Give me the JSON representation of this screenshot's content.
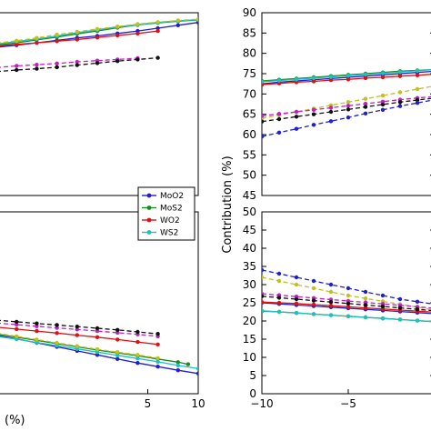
{
  "chart_data": [
    {
      "id": "left-top",
      "type": "line",
      "xlim": [
        -10,
        10
      ],
      "ylim": [
        45,
        90
      ],
      "xticks": [],
      "yticks": [],
      "series": [
        {
          "name": "MoO2",
          "color": "#1f1fd0",
          "dash": false,
          "x": [
            -10,
            -8,
            -6,
            -4,
            -2,
            0,
            2,
            4,
            6,
            8,
            10
          ],
          "y": [
            81.5,
            82.0,
            82.6,
            83.2,
            83.8,
            84.3,
            84.9,
            85.5,
            86.2,
            86.9,
            87.6
          ]
        },
        {
          "name": "MoS2",
          "color": "#1a8a1a",
          "dash": false,
          "x": [
            -10,
            -8,
            -6,
            -4,
            -2,
            0,
            2,
            4,
            6,
            8,
            10
          ],
          "y": [
            82.0,
            82.6,
            83.3,
            84.0,
            84.8,
            85.5,
            86.3,
            87.0,
            87.5,
            87.9,
            88.2
          ]
        },
        {
          "name": "WO2",
          "color": "#e01010",
          "dash": false,
          "x": [
            -10,
            -8,
            -6,
            -4,
            -2,
            0,
            2,
            4,
            6
          ],
          "y": [
            81.8,
            82.2,
            82.6,
            83.0,
            83.4,
            83.9,
            84.4,
            84.9,
            85.5
          ]
        },
        {
          "name": "WS2",
          "color": "#20c0c0",
          "dash": false,
          "x": [
            -10,
            -8,
            -6,
            -4,
            -2,
            0,
            2,
            4,
            6,
            8,
            10
          ],
          "y": [
            82.3,
            82.9,
            83.5,
            84.3,
            85.1,
            85.8,
            86.5,
            87.1,
            87.6,
            88.0,
            88.3
          ]
        },
        {
          "name": "",
          "color": "#c0c020",
          "dash": true,
          "x": [
            -10,
            -8,
            -6,
            -4,
            -2,
            0,
            2,
            4,
            6,
            8,
            10
          ],
          "y": [
            82.5,
            83.1,
            83.8,
            84.6,
            85.3,
            86.0,
            86.6,
            87.2,
            87.7,
            88.1,
            88.4
          ]
        },
        {
          "name": "",
          "color": "#c020c0",
          "dash": true,
          "x": [
            -10,
            -8,
            -6,
            -4,
            -2,
            0,
            2,
            4
          ],
          "y": [
            76.5,
            76.9,
            77.2,
            77.5,
            77.9,
            78.2,
            78.5,
            78.8
          ]
        },
        {
          "name": "",
          "color": "#101010",
          "dash": true,
          "x": [
            -10,
            -8,
            -6,
            -4,
            -2,
            0,
            2,
            4,
            6
          ],
          "y": [
            75.5,
            75.9,
            76.2,
            76.6,
            77.1,
            77.6,
            78.1,
            78.5,
            78.9
          ]
        }
      ]
    },
    {
      "id": "left-bottom",
      "type": "line",
      "xlim": [
        -10,
        10
      ],
      "ylim": [
        5,
        50
      ],
      "xticks": [
        5,
        10
      ],
      "yticks": [],
      "series": [
        {
          "name": "MoO2",
          "color": "#1f1fd0",
          "dash": false,
          "x": [
            -10,
            -8,
            -6,
            -4,
            -2,
            0,
            2,
            4,
            6,
            8,
            10
          ],
          "y": [
            19.5,
            18.6,
            17.6,
            16.6,
            15.6,
            14.6,
            13.6,
            12.6,
            11.7,
            10.8,
            10.0
          ]
        },
        {
          "name": "MoS2",
          "color": "#1a8a1a",
          "dash": false,
          "x": [
            -10,
            -8,
            -6,
            -4,
            -2,
            0,
            2,
            4,
            6,
            8,
            9
          ],
          "y": [
            19.8,
            19.0,
            18.2,
            17.4,
            16.6,
            15.8,
            15.1,
            14.4,
            13.6,
            12.8,
            12.3
          ]
        },
        {
          "name": "WO2",
          "color": "#e01010",
          "dash": false,
          "x": [
            -10,
            -8,
            -6,
            -4,
            -2,
            0,
            2,
            4,
            6
          ],
          "y": [
            21.5,
            21.0,
            20.5,
            20.0,
            19.5,
            19.0,
            18.4,
            17.8,
            17.2
          ]
        },
        {
          "name": "WS2",
          "color": "#20c0c0",
          "dash": false,
          "x": [
            -10,
            -8,
            -6,
            -4,
            -2,
            0,
            2,
            4,
            6,
            8,
            10
          ],
          "y": [
            19.2,
            18.5,
            17.7,
            16.9,
            16.1,
            15.3,
            14.5,
            13.7,
            12.9,
            12.0,
            11.2
          ]
        },
        {
          "name": "",
          "color": "#c0c020",
          "dash": true,
          "x": [
            -10,
            -8,
            -6,
            -4,
            -2,
            0,
            2,
            4,
            6
          ],
          "y": [
            20.0,
            19.2,
            18.4,
            17.6,
            16.8,
            16.0,
            15.3,
            14.6,
            13.8
          ]
        },
        {
          "name": "",
          "color": "#c020c0",
          "dash": true,
          "x": [
            -10,
            -8,
            -6,
            -4,
            -2,
            0,
            2,
            4,
            6
          ],
          "y": [
            22.5,
            22.1,
            21.7,
            21.3,
            20.9,
            20.5,
            20.1,
            19.7,
            19.2
          ]
        },
        {
          "name": "",
          "color": "#101010",
          "dash": true,
          "x": [
            -10,
            -8,
            -6,
            -4,
            -2,
            0,
            2,
            4,
            6
          ],
          "y": [
            23.2,
            22.8,
            22.4,
            22.0,
            21.6,
            21.2,
            20.8,
            20.3,
            19.8
          ]
        }
      ],
      "xlabel": "(%)"
    },
    {
      "id": "right-top",
      "type": "line",
      "xlim": [
        -10,
        0
      ],
      "ylim": [
        45,
        90
      ],
      "xticks": [],
      "yticks": [
        45,
        50,
        55,
        60,
        65,
        70,
        75,
        80,
        85,
        90
      ],
      "series": [
        {
          "name": "MoO2",
          "color": "#1f1fd0",
          "dash": false,
          "x": [
            -10,
            -9,
            -8,
            -7,
            -6,
            -5,
            -4,
            -3,
            -2,
            -1,
            0
          ],
          "y": [
            72.5,
            72.9,
            73.2,
            73.5,
            73.8,
            74.1,
            74.4,
            74.7,
            75.0,
            75.3,
            75.6
          ]
        },
        {
          "name": "MoS2",
          "color": "#1a8a1a",
          "dash": false,
          "x": [
            -10,
            -9,
            -8,
            -7,
            -6,
            -5,
            -4,
            -3,
            -2,
            -1,
            0
          ],
          "y": [
            73.2,
            73.5,
            73.8,
            74.1,
            74.4,
            74.7,
            75.0,
            75.3,
            75.6,
            75.8,
            76.0
          ]
        },
        {
          "name": "WO2",
          "color": "#e01010",
          "dash": false,
          "x": [
            -10,
            -9,
            -8,
            -7,
            -6,
            -5,
            -4,
            -3,
            -2,
            -1,
            0
          ],
          "y": [
            72.3,
            72.6,
            72.9,
            73.1,
            73.4,
            73.6,
            73.9,
            74.1,
            74.4,
            74.6,
            74.9
          ]
        },
        {
          "name": "WS2",
          "color": "#20c0c0",
          "dash": false,
          "x": [
            -10,
            -9,
            -8,
            -7,
            -6,
            -5,
            -4,
            -3,
            -2,
            -1,
            0
          ],
          "y": [
            73.0,
            73.3,
            73.6,
            73.9,
            74.2,
            74.5,
            74.8,
            75.1,
            75.4,
            75.7,
            76.0
          ]
        },
        {
          "name": "",
          "color": "#c0c020",
          "dash": true,
          "x": [
            -10,
            -9,
            -8,
            -7,
            -6,
            -5,
            -4,
            -3,
            -2,
            -1,
            0
          ],
          "y": [
            64.0,
            64.8,
            65.6,
            66.4,
            67.2,
            68.0,
            68.8,
            69.6,
            70.4,
            71.2,
            72.0
          ]
        },
        {
          "name": "",
          "color": "#c020c0",
          "dash": true,
          "x": [
            -10,
            -9,
            -8,
            -7,
            -6,
            -5,
            -4,
            -3,
            -2,
            -1,
            0
          ],
          "y": [
            64.6,
            65.1,
            65.6,
            66.1,
            66.6,
            67.1,
            67.6,
            68.1,
            68.6,
            69.0,
            69.4
          ]
        },
        {
          "name": "",
          "color": "#101010",
          "dash": true,
          "x": [
            -10,
            -9,
            -8,
            -7,
            -6,
            -5,
            -4,
            -3,
            -2,
            -1,
            0
          ],
          "y": [
            63.2,
            63.8,
            64.4,
            65.0,
            65.6,
            66.2,
            66.8,
            67.4,
            68.0,
            68.5,
            69.0
          ]
        },
        {
          "name": "",
          "color": "#1f1fd0",
          "dash": true,
          "x": [
            -10,
            -9,
            -8,
            -7,
            -6,
            -5,
            -4,
            -3,
            -2,
            -1,
            0
          ],
          "y": [
            59.5,
            60.5,
            61.4,
            62.4,
            63.3,
            64.2,
            65.2,
            66.1,
            67.0,
            67.8,
            68.6
          ]
        }
      ]
    },
    {
      "id": "right-bottom",
      "type": "line",
      "xlim": [
        -10,
        0
      ],
      "ylim": [
        0,
        50
      ],
      "xticks": [
        -10,
        -5
      ],
      "yticks": [
        0,
        5,
        10,
        15,
        20,
        25,
        30,
        35,
        40,
        45,
        50
      ],
      "series": [
        {
          "name": "MoO2",
          "color": "#1f1fd0",
          "dash": false,
          "x": [
            -10,
            -9,
            -8,
            -7,
            -6,
            -5,
            -4,
            -3,
            -2,
            -1,
            0
          ],
          "y": [
            25.0,
            24.7,
            24.4,
            24.1,
            23.8,
            23.5,
            23.2,
            22.9,
            22.6,
            22.3,
            22.0
          ]
        },
        {
          "name": "MoS2",
          "color": "#1a8a1a",
          "dash": false,
          "x": [
            -10,
            -9,
            -8,
            -7,
            -6,
            -5,
            -4,
            -3,
            -2,
            -1,
            0
          ],
          "y": [
            22.7,
            22.5,
            22.2,
            21.9,
            21.6,
            21.3,
            21.0,
            20.7,
            20.4,
            20.1,
            19.8
          ]
        },
        {
          "name": "WO2",
          "color": "#e01010",
          "dash": false,
          "x": [
            -10,
            -9,
            -8,
            -7,
            -6,
            -5,
            -4,
            -3,
            -2,
            -1,
            0
          ],
          "y": [
            25.2,
            25.0,
            24.8,
            24.5,
            24.2,
            23.9,
            23.6,
            23.3,
            23.0,
            22.7,
            22.4
          ]
        },
        {
          "name": "WS2",
          "color": "#20c0c0",
          "dash": false,
          "x": [
            -10,
            -9,
            -8,
            -7,
            -6,
            -5,
            -4,
            -3,
            -2,
            -1,
            0
          ],
          "y": [
            22.8,
            22.5,
            22.2,
            21.9,
            21.6,
            21.3,
            21.0,
            20.7,
            20.4,
            20.1,
            19.8
          ]
        },
        {
          "name": "",
          "color": "#c0c020",
          "dash": true,
          "x": [
            -10,
            -9,
            -8,
            -7,
            -6,
            -5,
            -4,
            -3,
            -2,
            -1,
            0
          ],
          "y": [
            32.0,
            31.0,
            30.0,
            29.0,
            28.0,
            27.0,
            26.2,
            25.4,
            24.6,
            23.8,
            23.0
          ]
        },
        {
          "name": "",
          "color": "#c020c0",
          "dash": true,
          "x": [
            -10,
            -9,
            -8,
            -7,
            -6,
            -5,
            -4,
            -3,
            -2,
            -1,
            0
          ],
          "y": [
            27.5,
            27.1,
            26.7,
            26.3,
            25.9,
            25.5,
            25.1,
            24.7,
            24.3,
            23.9,
            23.5
          ]
        },
        {
          "name": "",
          "color": "#101010",
          "dash": true,
          "x": [
            -10,
            -9,
            -8,
            -7,
            -6,
            -5,
            -4,
            -3,
            -2,
            -1,
            0
          ],
          "y": [
            26.8,
            26.4,
            26.0,
            25.6,
            25.2,
            24.8,
            24.4,
            24.0,
            23.6,
            23.2,
            22.8
          ]
        },
        {
          "name": "",
          "color": "#1f1fd0",
          "dash": true,
          "x": [
            -10,
            -9,
            -8,
            -7,
            -6,
            -5,
            -4,
            -3,
            -2,
            -1,
            0
          ],
          "y": [
            34.0,
            33.0,
            32.0,
            31.0,
            30.0,
            29.0,
            28.0,
            27.0,
            26.0,
            25.3,
            24.6
          ]
        }
      ]
    }
  ],
  "shared": {
    "ylabel": "Contribution (%)",
    "legend": [
      {
        "label": "MoO2",
        "color": "#1f1fd0"
      },
      {
        "label": "MoS2",
        "color": "#1a8a1a"
      },
      {
        "label": "WO2",
        "color": "#e01010"
      },
      {
        "label": "WS2",
        "color": "#20c0c0"
      }
    ]
  }
}
